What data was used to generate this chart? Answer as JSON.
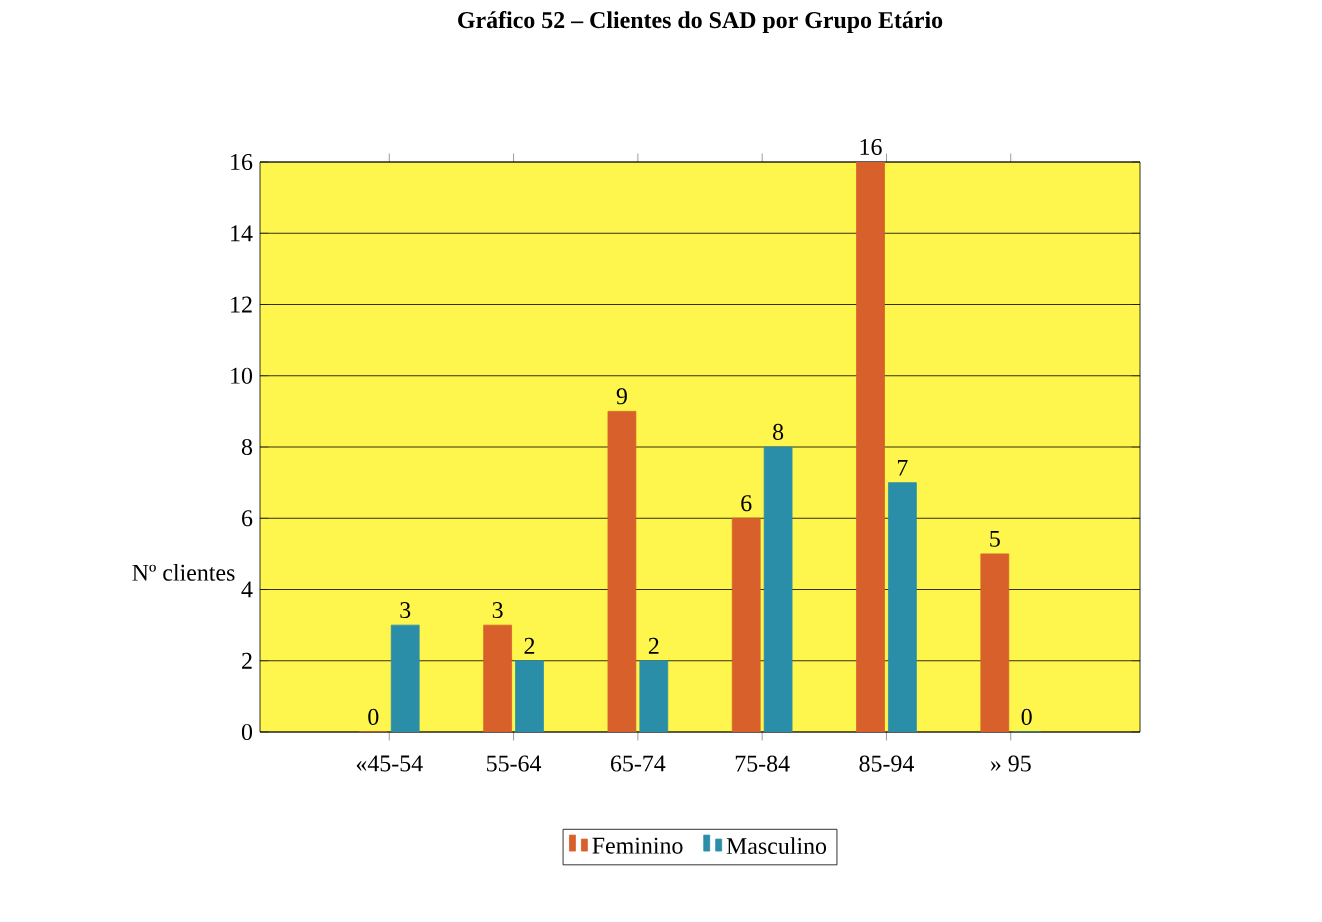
{
  "chart_data": {
    "type": "bar",
    "title": "Gráfico 52 – Clientes do SAD por Grupo Etário",
    "ylabel": "Nº clientes",
    "categories": [
      "«45-54",
      "55-64",
      "65-74",
      "75-84",
      "85-94",
      "» 95"
    ],
    "series": [
      {
        "name": "Feminino",
        "color": "#d8602a",
        "values": [
          0,
          3,
          9,
          6,
          16,
          5
        ]
      },
      {
        "name": "Masculino",
        "color": "#2b8ea8",
        "values": [
          3,
          2,
          2,
          8,
          7,
          0
        ]
      }
    ],
    "ylim": [
      0,
      16
    ],
    "yticks": [
      0,
      2,
      4,
      6,
      8,
      10,
      12,
      14,
      16
    ],
    "grid": "y",
    "legend": "bottom",
    "data_labels": true
  }
}
